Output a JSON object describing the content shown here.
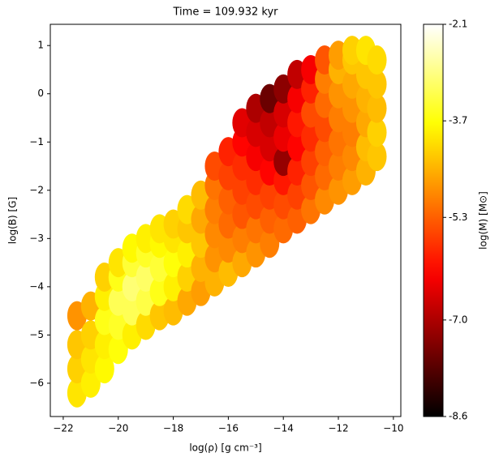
{
  "chart_data": {
    "type": "scatter",
    "title": "Time = 109.932 kyr",
    "xlabel": "log(ρ) [g cm⁻³]",
    "ylabel": "log(B) [G]",
    "colorbar_label": "log(M) [M⊙]",
    "xlim": [
      -22.47,
      -9.73
    ],
    "ylim": [
      -6.69,
      1.44
    ],
    "xticks": [
      {
        "value": -22,
        "label": "−22"
      },
      {
        "value": -20,
        "label": "−20"
      },
      {
        "value": -18,
        "label": "−18"
      },
      {
        "value": -16,
        "label": "−16"
      },
      {
        "value": -14,
        "label": "−14"
      },
      {
        "value": -12,
        "label": "−12"
      },
      {
        "value": -10,
        "label": "−10"
      }
    ],
    "yticks": [
      {
        "value": -6,
        "label": "−6"
      },
      {
        "value": -5,
        "label": "−5"
      },
      {
        "value": -4,
        "label": "−4"
      },
      {
        "value": -3,
        "label": "−3"
      },
      {
        "value": -2,
        "label": "−2"
      },
      {
        "value": -1,
        "label": "−1"
      },
      0,
      1
    ],
    "clim": [
      -8.6,
      -2.1
    ],
    "cticks": [
      -8.6,
      {
        "value": -7,
        "label": "-7.0"
      },
      -5.3,
      -3.7,
      -2.1
    ],
    "colormap": "hot",
    "series": [
      {
        "x": [
          -21.5,
          -21.5,
          -21.5,
          -21.5,
          -21,
          -21,
          -21,
          -21,
          -20.5,
          -20.5,
          -20.5,
          -20.5,
          -20.5,
          -20,
          -20,
          -20,
          -20,
          -20,
          -19.5,
          -19.5,
          -19.5,
          -19.5,
          -19.5,
          -19,
          -19,
          -19,
          -19,
          -19,
          -18.5,
          -18.5,
          -18.5,
          -18.5,
          -18.5,
          -18,
          -18,
          -18,
          -18,
          -18,
          -17.5,
          -17.5,
          -17.5,
          -17.5,
          -17.5,
          -17,
          -17,
          -17,
          -17,
          -17,
          -16.5,
          -16.5,
          -16.5,
          -16.5,
          -16.5,
          -16.5,
          -16,
          -16,
          -16,
          -16,
          -16,
          -16,
          -15.5,
          -15.5,
          -15.5,
          -15.5,
          -15.5,
          -15.5,
          -15.5,
          -15,
          -15,
          -15,
          -15,
          -15,
          -15,
          -15,
          -14.5,
          -14.5,
          -14.5,
          -14.5,
          -14.5,
          -14.5,
          -14.5,
          -14,
          -14,
          -14,
          -14,
          -14,
          -14,
          -14,
          -13.5,
          -13.5,
          -13.5,
          -13.5,
          -13.5,
          -13.5,
          -13.5,
          -13,
          -13,
          -13,
          -13,
          -13,
          -13,
          -13,
          -12.5,
          -12.5,
          -12.5,
          -12.5,
          -12.5,
          -12.5,
          -12.5,
          -12,
          -12,
          -12,
          -12,
          -12,
          -12,
          -12,
          -11.5,
          -11.5,
          -11.5,
          -11.5,
          -11.5,
          -11.5,
          -11.5,
          -11,
          -11,
          -11,
          -11,
          -11,
          -11,
          -10.6,
          -10.6,
          -10.6,
          -10.6,
          -10.6
        ],
        "values": [
          -6.2,
          -5.7,
          -5.2,
          -4.6,
          -6.0,
          -5.5,
          -5.0,
          -4.4,
          -5.7,
          -5.2,
          -4.7,
          -4.2,
          -3.8,
          -5.3,
          -4.8,
          -4.3,
          -3.8,
          -3.5,
          -5.0,
          -4.5,
          -4.0,
          -3.5,
          -3.2,
          -4.8,
          -4.3,
          -3.8,
          -3.3,
          -3.0,
          -4.6,
          -4.1,
          -3.6,
          -3.1,
          -2.8,
          -4.5,
          -4.0,
          -3.5,
          -3.0,
          -2.7,
          -4.3,
          -3.8,
          -3.3,
          -2.8,
          -2.4,
          -4.1,
          -3.6,
          -3.1,
          -2.6,
          -2.1,
          -3.9,
          -3.4,
          -2.9,
          -2.4,
          -1.9,
          -1.5,
          -3.7,
          -3.2,
          -2.7,
          -2.2,
          -1.7,
          -1.2,
          -3.5,
          -3.0,
          -2.5,
          -2.0,
          -1.5,
          -1.0,
          -0.6,
          -3.3,
          -2.8,
          -2.3,
          -1.8,
          -1.3,
          -0.8,
          -0.3,
          -3.1,
          -2.6,
          -2.1,
          -1.6,
          -1.1,
          -0.6,
          -0.1,
          -2.8,
          -2.3,
          -1.8,
          -1.4,
          -0.9,
          -0.4,
          0.1,
          -2.6,
          -2.1,
          -1.6,
          -1.1,
          -0.6,
          -0.1,
          0.4,
          -2.4,
          -1.9,
          -1.4,
          -0.9,
          -0.4,
          0.1,
          0.5,
          -2.2,
          -1.7,
          -1.2,
          -0.7,
          -0.2,
          0.3,
          0.7,
          -2.0,
          -1.5,
          -1.0,
          -0.5,
          0.0,
          0.5,
          0.8,
          -1.8,
          -1.3,
          -0.8,
          -0.3,
          0.2,
          0.7,
          0.9,
          -1.6,
          -1.1,
          -0.6,
          -0.1,
          0.4,
          0.9,
          -1.3,
          -0.8,
          -0.3,
          0.2,
          0.7
        ],
        "c": [
          -4.0,
          -4.2,
          -4.3,
          -4.8,
          -3.9,
          -4.0,
          -4.2,
          -4.5,
          -3.8,
          -3.9,
          -3.6,
          -3.9,
          -4.2,
          -3.7,
          -3.5,
          -3.2,
          -3.6,
          -4.0,
          -3.9,
          -3.2,
          -3.0,
          -3.4,
          -3.8,
          -4.1,
          -3.3,
          -3.1,
          -3.5,
          -3.9,
          -4.3,
          -3.6,
          -3.4,
          -3.8,
          -4.0,
          -4.4,
          -3.9,
          -3.7,
          -4.0,
          -4.2,
          -4.6,
          -4.2,
          -3.9,
          -4.3,
          -4.1,
          -4.7,
          -4.5,
          -4.3,
          -4.6,
          -4.4,
          -4.5,
          -4.8,
          -4.9,
          -5.0,
          -5.1,
          -5.5,
          -4.4,
          -4.9,
          -5.2,
          -5.3,
          -5.6,
          -5.9,
          -4.6,
          -5.0,
          -5.4,
          -5.6,
          -5.8,
          -6.2,
          -6.5,
          -4.8,
          -5.1,
          -5.5,
          -5.8,
          -6.3,
          -6.6,
          -7.0,
          -5.0,
          -5.3,
          -5.6,
          -6.2,
          -6.6,
          -6.8,
          -7.6,
          -5.2,
          -5.5,
          -6.0,
          -7.2,
          -6.4,
          -6.6,
          -7.3,
          -5.3,
          -5.6,
          -5.9,
          -6.2,
          -6.0,
          -6.3,
          -6.8,
          -5.1,
          -5.4,
          -5.6,
          -5.8,
          -5.5,
          -5.9,
          -6.3,
          -4.9,
          -5.2,
          -5.3,
          -5.5,
          -5.2,
          -5.0,
          -5.4,
          -4.8,
          -5.0,
          -5.1,
          -5.0,
          -4.8,
          -4.5,
          -4.7,
          -4.7,
          -4.9,
          -5.0,
          -4.8,
          -4.6,
          -4.3,
          -4.2,
          -4.5,
          -4.4,
          -4.6,
          -4.5,
          -4.3,
          -4.0,
          -4.3,
          -4.2,
          -4.4,
          -4.3,
          -4.1
        ]
      }
    ]
  }
}
